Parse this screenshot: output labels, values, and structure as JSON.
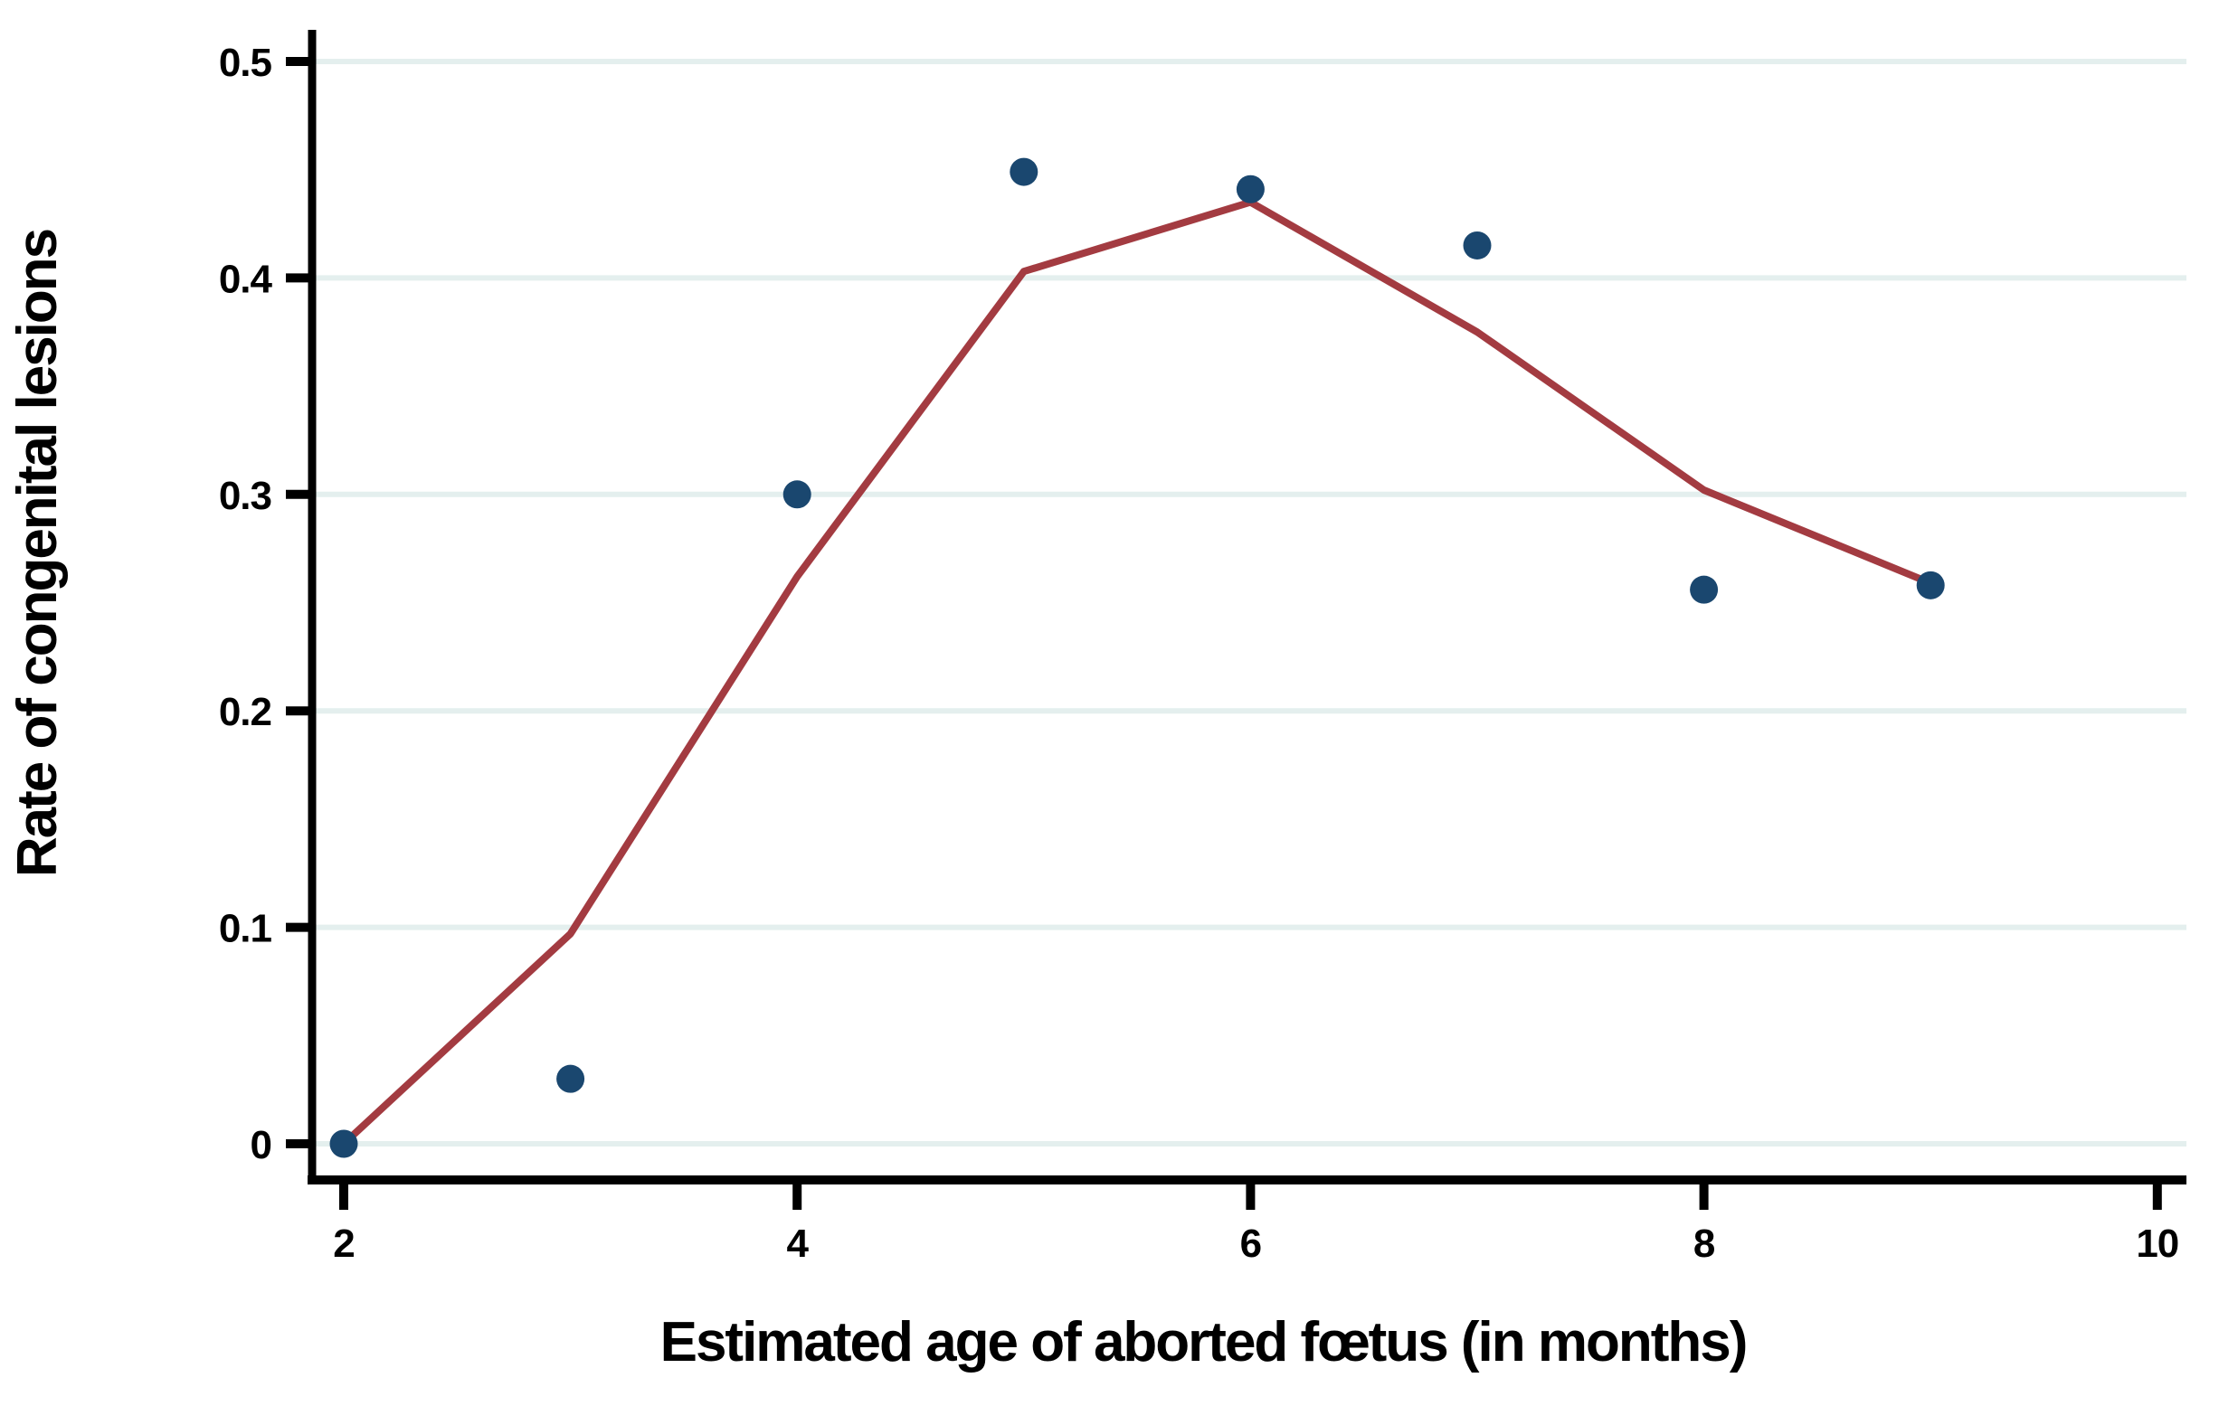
{
  "figure": {
    "background": "#ffffff"
  },
  "chart_data": {
    "type": "scatter",
    "title": "",
    "xlabel": "Estimated age of aborted fœtus (in months)",
    "ylabel": "Rate of congenital lesions",
    "x": [
      2,
      3,
      4,
      5,
      6,
      7,
      8,
      9
    ],
    "series": [
      {
        "name": "observed-rate-points",
        "kind": "scatter",
        "color": "#1a476f",
        "values": [
          0,
          0.03,
          0.3,
          0.449,
          0.441,
          0.415,
          0.256,
          0.258
        ]
      },
      {
        "name": "fitted-line",
        "kind": "line",
        "color": "#a33b41",
        "values": [
          0,
          0.097,
          0.262,
          0.403,
          0.435,
          0.375,
          0.302,
          0.259
        ]
      }
    ],
    "xticks": [
      2,
      4,
      6,
      8,
      10
    ],
    "xtick_labels": [
      "2",
      "4",
      "6",
      "8",
      "10"
    ],
    "yticks": [
      0,
      0.1,
      0.2,
      0.3,
      0.4,
      0.5
    ],
    "ytick_labels": [
      "0",
      "0.1",
      "0.2",
      "0.3",
      "0.4",
      "0.5"
    ],
    "xlim": [
      1.86,
      10.13
    ],
    "ylim": [
      -0.015,
      0.515
    ],
    "grid": "horizontal",
    "legend": "none",
    "colors": {
      "axis": "#000000",
      "grid": "#e4efee",
      "point": "#1a476f",
      "line": "#a33b41",
      "text": "#000000"
    }
  }
}
